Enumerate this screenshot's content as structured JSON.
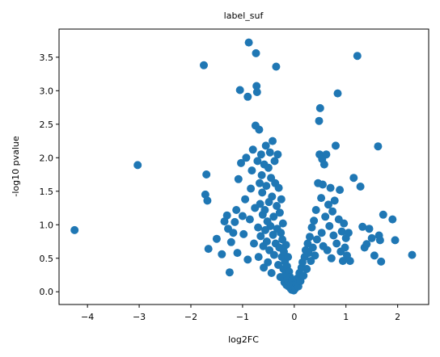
{
  "chart_data": {
    "type": "scatter",
    "title": "label_suf",
    "xlabel": "log2FC",
    "ylabel": "-log10 pvalue",
    "xlim": [
      -4.55,
      2.6
    ],
    "ylim": [
      -0.19,
      3.92
    ],
    "xticks": [
      -4,
      -3,
      -2,
      -1,
      0,
      1,
      2
    ],
    "xtick_labels": [
      "−4",
      "−3",
      "−2",
      "−1",
      "0",
      "1",
      "2"
    ],
    "yticks": [
      0.0,
      0.5,
      1.0,
      1.5,
      2.0,
      2.5,
      3.0,
      3.5
    ],
    "ytick_labels": [
      "0.0",
      "0.5",
      "1.0",
      "1.5",
      "2.0",
      "2.5",
      "3.0",
      "3.5"
    ],
    "grid": false,
    "color": "#1f77b4",
    "points": [
      [
        -4.25,
        0.92
      ],
      [
        -3.03,
        1.89
      ],
      [
        -1.75,
        3.38
      ],
      [
        -1.72,
        1.45
      ],
      [
        -1.7,
        1.75
      ],
      [
        -1.68,
        1.36
      ],
      [
        -1.66,
        0.64
      ],
      [
        -1.5,
        0.79
      ],
      [
        -1.4,
        0.56
      ],
      [
        -1.35,
        1.05
      ],
      [
        -1.3,
        1.14
      ],
      [
        -1.28,
        0.94
      ],
      [
        -1.25,
        0.29
      ],
      [
        -1.22,
        0.74
      ],
      [
        -1.18,
        0.88
      ],
      [
        -1.15,
        1.04
      ],
      [
        -1.12,
        1.22
      ],
      [
        -1.1,
        0.58
      ],
      [
        -1.08,
        1.68
      ],
      [
        -1.05,
        3.01
      ],
      [
        -1.03,
        1.92
      ],
      [
        -1.0,
        1.13
      ],
      [
        -0.98,
        0.86
      ],
      [
        -0.95,
        1.38
      ],
      [
        -0.93,
        2.0
      ],
      [
        -0.9,
        2.91
      ],
      [
        -0.9,
        0.48
      ],
      [
        -0.88,
        3.72
      ],
      [
        -0.86,
        1.08
      ],
      [
        -0.84,
        1.54
      ],
      [
        -0.82,
        1.81
      ],
      [
        -0.8,
        2.12
      ],
      [
        -0.78,
        0.72
      ],
      [
        -0.76,
        1.25
      ],
      [
        -0.75,
        2.48
      ],
      [
        -0.74,
        3.56
      ],
      [
        -0.73,
        3.07
      ],
      [
        -0.72,
        2.98
      ],
      [
        -0.71,
        1.95
      ],
      [
        -0.7,
        0.96
      ],
      [
        -0.69,
        0.52
      ],
      [
        -0.68,
        2.42
      ],
      [
        -0.67,
        1.62
      ],
      [
        -0.66,
        1.31
      ],
      [
        -0.65,
        0.83
      ],
      [
        -0.64,
        2.05
      ],
      [
        -0.63,
        1.74
      ],
      [
        -0.62,
        1.48
      ],
      [
        -0.61,
        1.15
      ],
      [
        -0.6,
        0.68
      ],
      [
        -0.59,
        0.36
      ],
      [
        -0.58,
        1.9
      ],
      [
        -0.57,
        1.22
      ],
      [
        -0.56,
        0.92
      ],
      [
        -0.55,
        2.18
      ],
      [
        -0.54,
        1.58
      ],
      [
        -0.53,
        0.75
      ],
      [
        -0.52,
        1.05
      ],
      [
        -0.51,
        0.44
      ],
      [
        -0.5,
        1.85
      ],
      [
        -0.49,
        1.34
      ],
      [
        -0.48,
        0.62
      ],
      [
        -0.47,
        2.08
      ],
      [
        -0.46,
        0.98
      ],
      [
        -0.45,
        1.7
      ],
      [
        -0.44,
        0.28
      ],
      [
        -0.43,
        1.42
      ],
      [
        -0.42,
        2.25
      ],
      [
        -0.41,
        0.85
      ],
      [
        -0.4,
        1.12
      ],
      [
        -0.39,
        0.55
      ],
      [
        -0.38,
        1.95
      ],
      [
        -0.37,
        1.62
      ],
      [
        -0.36,
        0.72
      ],
      [
        -0.35,
        3.36
      ],
      [
        -0.34,
        1.28
      ],
      [
        -0.33,
        0.94
      ],
      [
        -0.32,
        2.05
      ],
      [
        -0.31,
        0.4
      ],
      [
        -0.3,
        1.55
      ],
      [
        -0.29,
        0.66
      ],
      [
        -0.28,
        1.18
      ],
      [
        -0.27,
        0.22
      ],
      [
        -0.26,
        0.88
      ],
      [
        -0.25,
        1.38
      ],
      [
        -0.24,
        0.52
      ],
      [
        -0.23,
        0.78
      ],
      [
        -0.22,
        1.02
      ],
      [
        -0.21,
        0.34
      ],
      [
        -0.2,
        0.6
      ],
      [
        -0.19,
        0.14
      ],
      [
        -0.18,
        0.45
      ],
      [
        -0.17,
        0.26
      ],
      [
        -0.16,
        0.7
      ],
      [
        -0.15,
        0.1
      ],
      [
        -0.14,
        0.38
      ],
      [
        -0.13,
        0.18
      ],
      [
        -0.12,
        0.52
      ],
      [
        -0.11,
        0.08
      ],
      [
        -0.1,
        0.3
      ],
      [
        -0.09,
        0.15
      ],
      [
        -0.08,
        0.22
      ],
      [
        -0.07,
        0.05
      ],
      [
        -0.06,
        0.12
      ],
      [
        -0.05,
        0.03
      ],
      [
        -0.04,
        0.18
      ],
      [
        -0.03,
        0.06
      ],
      [
        -0.02,
        0.1
      ],
      [
        -0.01,
        0.02
      ],
      [
        0.0,
        0.04
      ],
      [
        0.02,
        0.05
      ],
      [
        0.04,
        0.12
      ],
      [
        0.06,
        0.2
      ],
      [
        0.08,
        0.08
      ],
      [
        0.1,
        0.28
      ],
      [
        0.12,
        0.16
      ],
      [
        0.14,
        0.36
      ],
      [
        0.16,
        0.44
      ],
      [
        0.18,
        0.24
      ],
      [
        0.2,
        0.52
      ],
      [
        0.22,
        0.62
      ],
      [
        0.24,
        0.34
      ],
      [
        0.26,
        0.72
      ],
      [
        0.28,
        0.58
      ],
      [
        0.3,
        0.82
      ],
      [
        0.32,
        0.46
      ],
      [
        0.34,
        0.96
      ],
      [
        0.36,
        0.66
      ],
      [
        0.38,
        1.06
      ],
      [
        0.4,
        0.54
      ],
      [
        0.42,
        1.22
      ],
      [
        0.44,
        0.78
      ],
      [
        0.46,
        1.62
      ],
      [
        0.48,
        2.55
      ],
      [
        0.49,
        2.05
      ],
      [
        0.5,
        2.74
      ],
      [
        0.52,
        1.4
      ],
      [
        0.53,
        0.88
      ],
      [
        0.54,
        1.98
      ],
      [
        0.55,
        1.6
      ],
      [
        0.56,
        0.68
      ],
      [
        0.58,
        1.9
      ],
      [
        0.6,
        1.12
      ],
      [
        0.62,
        2.05
      ],
      [
        0.64,
        0.62
      ],
      [
        0.66,
        1.3
      ],
      [
        0.68,
        0.98
      ],
      [
        0.7,
        1.55
      ],
      [
        0.72,
        0.5
      ],
      [
        0.74,
        1.2
      ],
      [
        0.76,
        0.84
      ],
      [
        0.78,
        1.36
      ],
      [
        0.8,
        2.18
      ],
      [
        0.82,
        0.72
      ],
      [
        0.84,
        2.96
      ],
      [
        0.86,
        1.08
      ],
      [
        0.88,
        1.52
      ],
      [
        0.9,
        0.6
      ],
      [
        0.92,
        0.9
      ],
      [
        0.94,
        0.46
      ],
      [
        0.96,
        1.02
      ],
      [
        0.98,
        0.66
      ],
      [
        1.0,
        0.8
      ],
      [
        1.02,
        0.54
      ],
      [
        1.05,
        0.88
      ],
      [
        1.08,
        0.46
      ],
      [
        1.15,
        1.7
      ],
      [
        1.22,
        3.52
      ],
      [
        1.28,
        1.57
      ],
      [
        1.32,
        0.97
      ],
      [
        1.36,
        0.66
      ],
      [
        1.4,
        0.71
      ],
      [
        1.45,
        0.94
      ],
      [
        1.5,
        0.8
      ],
      [
        1.55,
        0.54
      ],
      [
        1.62,
        2.17
      ],
      [
        1.64,
        0.84
      ],
      [
        1.66,
        0.77
      ],
      [
        1.68,
        0.45
      ],
      [
        1.72,
        1.15
      ],
      [
        1.9,
        1.08
      ],
      [
        1.95,
        0.77
      ],
      [
        2.28,
        0.55
      ]
    ]
  }
}
